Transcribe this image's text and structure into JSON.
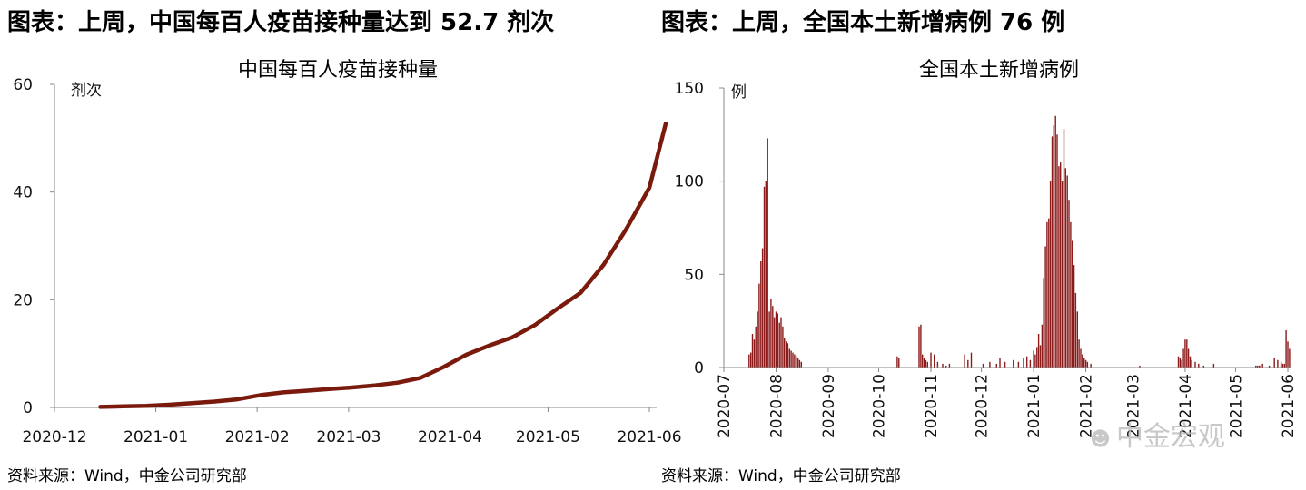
{
  "left_panel": {
    "heading": "图表：上周，中国每百人疫苗接种量达到 52.7 剂次",
    "source": "资料来源：Wind，中金公司研究部"
  },
  "right_panel": {
    "heading": "图表：上周，全国本土新增病例 76 例",
    "source": "资料来源：Wind，中金公司研究部"
  },
  "watermark": {
    "icon": "wechat-icon",
    "text": "中金宏观"
  },
  "colors": {
    "line": "#7a1a0c",
    "bar": "#8b1a1a",
    "axis": "#888888"
  },
  "chart_data": [
    {
      "type": "line",
      "title": "中国每百人疫苗接种量",
      "yunit": "剂次",
      "ylim": [
        0,
        60
      ],
      "yticks": [
        0,
        20,
        40,
        60
      ],
      "xlim": [
        "2020-12-01",
        "2021-06-01"
      ],
      "xticks": [
        "2020-12",
        "2021-01",
        "2021-02",
        "2021-03",
        "2021-04",
        "2021-05",
        "2021-06"
      ],
      "grid": false,
      "series": [
        {
          "x": [
            "2020-12-15",
            "2020-12-22",
            "2020-12-29",
            "2021-01-05",
            "2021-01-12",
            "2021-01-19",
            "2021-01-26",
            "2021-02-02",
            "2021-02-09",
            "2021-02-16",
            "2021-02-23",
            "2021-03-02",
            "2021-03-09",
            "2021-03-16",
            "2021-03-23",
            "2021-03-30",
            "2021-04-06",
            "2021-04-13",
            "2021-04-20",
            "2021-04-27",
            "2021-05-04",
            "2021-05-11",
            "2021-05-18",
            "2021-05-25",
            "2021-06-01",
            "2021-06-06"
          ],
          "y": [
            0.1,
            0.2,
            0.3,
            0.5,
            0.8,
            1.1,
            1.5,
            2.3,
            2.8,
            3.1,
            3.4,
            3.7,
            4.1,
            4.6,
            5.5,
            7.5,
            9.8,
            11.5,
            13.0,
            15.3,
            18.4,
            21.3,
            26.5,
            33.2,
            40.8,
            52.7
          ]
        }
      ]
    },
    {
      "type": "bar",
      "title": "全国本土新增病例",
      "yunit": "例",
      "ylim": [
        0,
        150
      ],
      "yticks": [
        0,
        50,
        100,
        150
      ],
      "xlim": [
        "2020-07-01",
        "2021-06-01"
      ],
      "xticks": [
        "2020-07",
        "2020-08",
        "2020-09",
        "2020-10",
        "2020-11",
        "2020-12",
        "2021-01",
        "2021-02",
        "2021-03",
        "2021-04",
        "2021-05",
        "2021-06"
      ],
      "grid": false,
      "series": [
        {
          "x": [
            "2020-07-16",
            "2020-07-17",
            "2020-07-18",
            "2020-07-19",
            "2020-07-20",
            "2020-07-21",
            "2020-07-22",
            "2020-07-23",
            "2020-07-24",
            "2020-07-25",
            "2020-07-26",
            "2020-07-27",
            "2020-07-28",
            "2020-07-29",
            "2020-07-30",
            "2020-07-31",
            "2020-08-01",
            "2020-08-02",
            "2020-08-03",
            "2020-08-04",
            "2020-08-05",
            "2020-08-06",
            "2020-08-07",
            "2020-08-08",
            "2020-08-09",
            "2020-08-10",
            "2020-08-11",
            "2020-08-12",
            "2020-08-13",
            "2020-08-14",
            "2020-08-15",
            "2020-08-16",
            "2020-10-12",
            "2020-10-13",
            "2020-10-25",
            "2020-10-26",
            "2020-10-27",
            "2020-10-28",
            "2020-10-29",
            "2020-10-30",
            "2020-11-01",
            "2020-11-03",
            "2020-11-05",
            "2020-11-08",
            "2020-11-10",
            "2020-11-12",
            "2020-11-21",
            "2020-11-23",
            "2020-11-25",
            "2020-12-02",
            "2020-12-06",
            "2020-12-10",
            "2020-12-12",
            "2020-12-15",
            "2020-12-20",
            "2020-12-23",
            "2020-12-26",
            "2020-12-28",
            "2020-12-30",
            "2021-01-01",
            "2021-01-02",
            "2021-01-03",
            "2021-01-04",
            "2021-01-05",
            "2021-01-06",
            "2021-01-07",
            "2021-01-08",
            "2021-01-09",
            "2021-01-10",
            "2021-01-11",
            "2021-01-12",
            "2021-01-13",
            "2021-01-14",
            "2021-01-15",
            "2021-01-16",
            "2021-01-17",
            "2021-01-18",
            "2021-01-19",
            "2021-01-20",
            "2021-01-21",
            "2021-01-22",
            "2021-01-23",
            "2021-01-24",
            "2021-01-25",
            "2021-01-26",
            "2021-01-27",
            "2021-01-28",
            "2021-01-29",
            "2021-01-30",
            "2021-01-31",
            "2021-02-01",
            "2021-02-02",
            "2021-02-04",
            "2021-03-05",
            "2021-03-28",
            "2021-03-29",
            "2021-03-30",
            "2021-03-31",
            "2021-04-01",
            "2021-04-02",
            "2021-04-03",
            "2021-04-04",
            "2021-04-05",
            "2021-04-07",
            "2021-04-09",
            "2021-04-12",
            "2021-04-18",
            "2021-05-13",
            "2021-05-14",
            "2021-05-15",
            "2021-05-16",
            "2021-05-17",
            "2021-05-21",
            "2021-05-24",
            "2021-05-26",
            "2021-05-28",
            "2021-05-29",
            "2021-05-30",
            "2021-05-31",
            "2021-06-01",
            "2021-06-02"
          ],
          "y": [
            7,
            8,
            18,
            15,
            22,
            30,
            45,
            57,
            64,
            97,
            100,
            123,
            30,
            37,
            33,
            27,
            30,
            29,
            24,
            27,
            22,
            16,
            14,
            13,
            10,
            9,
            8,
            7,
            6,
            5,
            4,
            3,
            6,
            5,
            22,
            23,
            7,
            5,
            4,
            3,
            8,
            7,
            3,
            2,
            1,
            2,
            7,
            4,
            8,
            2,
            3,
            2,
            5,
            3,
            4,
            3,
            5,
            6,
            4,
            9,
            7,
            11,
            18,
            12,
            23,
            48,
            65,
            78,
            80,
            100,
            124,
            130,
            135,
            125,
            108,
            110,
            100,
            128,
            107,
            103,
            90,
            78,
            68,
            55,
            40,
            30,
            15,
            10,
            7,
            5,
            4,
            3,
            2,
            1,
            6,
            5,
            4,
            10,
            15,
            15,
            10,
            6,
            4,
            3,
            2,
            1,
            2,
            1,
            1,
            1,
            1,
            2,
            1,
            5,
            4,
            3,
            2,
            2,
            20,
            14,
            10
          ]
        }
      ]
    }
  ]
}
